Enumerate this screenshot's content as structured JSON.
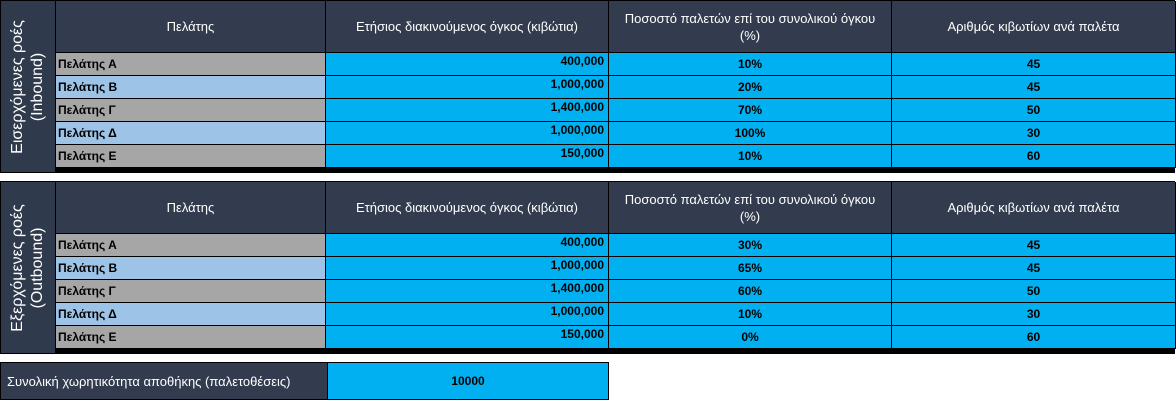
{
  "inbound": {
    "side_label_line1": "Εισερχόμενες ροές",
    "side_label_line2": "(Inbound)",
    "headers": {
      "client": "Πελάτης",
      "volume": "Ετήσιος διακινούμενος όγκος (κιβώτια)",
      "pallet_pct": "Ποσοστό παλετών επί του συνολικού όγκου (%)",
      "boxes_per_pallet": "Αριθμός κιβωτίων ανά παλέτα"
    },
    "rows": [
      {
        "client": "Πελάτης Α",
        "volume": "400,000",
        "pallet_pct": "10%",
        "boxes_per_pallet": "45"
      },
      {
        "client": "Πελάτης Β",
        "volume": "1,000,000",
        "pallet_pct": "20%",
        "boxes_per_pallet": "45"
      },
      {
        "client": "Πελάτης Γ",
        "volume": "1,400,000",
        "pallet_pct": "70%",
        "boxes_per_pallet": "50"
      },
      {
        "client": "Πελάτης Δ",
        "volume": "1,000,000",
        "pallet_pct": "100%",
        "boxes_per_pallet": "30"
      },
      {
        "client": "Πελάτης Ε",
        "volume": "150,000",
        "pallet_pct": "10%",
        "boxes_per_pallet": "60"
      }
    ]
  },
  "outbound": {
    "side_label_line1": "Εξερχόμενες ροές",
    "side_label_line2": "(Outbound)",
    "headers": {
      "client": "Πελάτης",
      "volume": "Ετήσιος διακινούμενος όγκος (κιβώτια)",
      "pallet_pct": "Ποσοστό παλετών επί του συνολικού όγκου (%)",
      "boxes_per_pallet": "Αριθμός κιβωτίων ανά παλέτα"
    },
    "rows": [
      {
        "client": "Πελάτης Α",
        "volume": "400,000",
        "pallet_pct": "30%",
        "boxes_per_pallet": "45"
      },
      {
        "client": "Πελάτης Β",
        "volume": "1,000,000",
        "pallet_pct": "65%",
        "boxes_per_pallet": "45"
      },
      {
        "client": "Πελάτης Γ",
        "volume": "1,400,000",
        "pallet_pct": "60%",
        "boxes_per_pallet": "50"
      },
      {
        "client": "Πελάτης Δ",
        "volume": "1,000,000",
        "pallet_pct": "10%",
        "boxes_per_pallet": "30"
      },
      {
        "client": "Πελάτης Ε",
        "volume": "150,000",
        "pallet_pct": "0%",
        "boxes_per_pallet": "60"
      }
    ]
  },
  "capacity": {
    "label": "Συνολική χωρητικότητα αποθήκης (παλετοθέσεις)",
    "value": "10000"
  },
  "colors": {
    "header_bg": "#323c4e",
    "value_bg": "#00b0f0",
    "row_grey": "#a6a6a6",
    "row_blue": "#9dc3e6"
  }
}
